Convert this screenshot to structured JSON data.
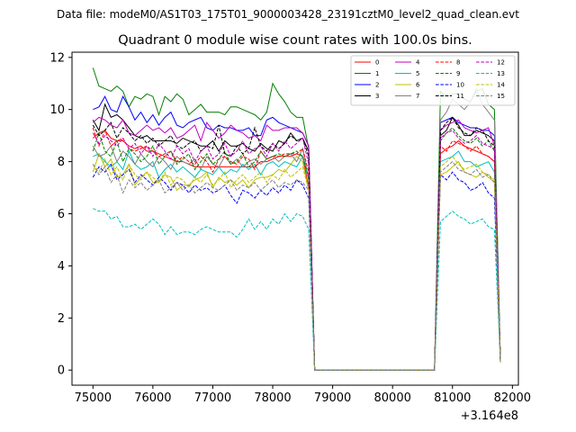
{
  "header": {
    "suptitle": "Data file: modeM0/AS1T03_175T01_9000003428_23191cztM0_level2_quad_clean.evt"
  },
  "chart_data": {
    "type": "line",
    "title": "Quadrant 0 module wise count rates with 100.0s bins.",
    "xlabel": "",
    "ylabel": "",
    "x_offset_label": "+3.164e8",
    "x_offset": 316400000,
    "xlim": [
      74650,
      82100
    ],
    "ylim": [
      -0.58,
      12.2
    ],
    "xticks": [
      75000,
      76000,
      77000,
      78000,
      79000,
      80000,
      81000,
      82000
    ],
    "xtick_labels": [
      "75000",
      "76000",
      "77000",
      "78000",
      "79000",
      "80000",
      "81000",
      "82000"
    ],
    "yticks": [
      0,
      2,
      4,
      6,
      8,
      10,
      12
    ],
    "ytick_labels": [
      "0",
      "2",
      "4",
      "6",
      "8",
      "10",
      "12"
    ],
    "grid": false,
    "legend_position": "top-right",
    "x_segment_1": [
      75000,
      75100,
      75200,
      75300,
      75400,
      75500,
      75600,
      75700,
      75800,
      75900,
      76000,
      76100,
      76200,
      76300,
      76400,
      76500,
      76600,
      76700,
      76800,
      76900,
      77000,
      77100,
      77200,
      77300,
      77400,
      77500,
      77600,
      77700,
      77800,
      77900,
      78000,
      78100,
      78200,
      78300,
      78400,
      78500,
      78600,
      78700
    ],
    "x_segment_2": [
      80700,
      80800,
      80900,
      81000,
      81100,
      81200,
      81300,
      81400,
      81500,
      81600,
      81700,
      81800
    ],
    "series": [
      {
        "name": "0",
        "color": "#ff0000",
        "dash": "solid",
        "s1": [
          8.9,
          9.1,
          9.2,
          8.9,
          8.8,
          8.8,
          8.6,
          8.5,
          8.6,
          8.4,
          8.4,
          8.3,
          8.2,
          8.1,
          8.0,
          8.0,
          7.9,
          7.8,
          7.8,
          7.8,
          7.8,
          7.8,
          7.8,
          7.8,
          7.8,
          7.8,
          7.8,
          7.8,
          8.0,
          8.0,
          8.1,
          8.2,
          8.2,
          8.2,
          8.3,
          8.2,
          7.0,
          0.0
        ],
        "s2": [
          0.0,
          8.3,
          8.5,
          8.6,
          8.8,
          8.6,
          8.5,
          8.4,
          8.3,
          8.2,
          8.0,
          0.3
        ]
      },
      {
        "name": "1",
        "color": "#008000",
        "dash": "solid",
        "s1": [
          11.6,
          10.9,
          10.8,
          10.7,
          10.9,
          10.7,
          10.1,
          10.5,
          10.4,
          10.6,
          10.5,
          9.8,
          10.5,
          10.3,
          10.6,
          10.4,
          9.8,
          10.0,
          10.2,
          9.9,
          9.9,
          9.9,
          9.8,
          10.1,
          10.1,
          10.0,
          9.9,
          9.8,
          9.6,
          9.9,
          11.0,
          10.6,
          10.3,
          9.9,
          9.7,
          9.7,
          8.5,
          0.0
        ],
        "s2": [
          0.0,
          10.7,
          10.5,
          10.6,
          10.6,
          10.4,
          10.3,
          10.7,
          10.8,
          10.2,
          10.0,
          0.3
        ]
      },
      {
        "name": "2",
        "color": "#0000ff",
        "dash": "solid",
        "s1": [
          10.0,
          10.1,
          10.5,
          10.0,
          9.9,
          10.5,
          10.1,
          9.6,
          9.9,
          9.5,
          9.8,
          9.4,
          9.7,
          9.9,
          9.4,
          9.3,
          9.5,
          9.6,
          9.7,
          9.3,
          9.2,
          9.4,
          9.3,
          9.3,
          9.2,
          9.2,
          9.3,
          9.0,
          9.0,
          9.6,
          9.7,
          9.5,
          9.4,
          9.3,
          9.2,
          9.1,
          8.6,
          0.0
        ],
        "s2": [
          0.0,
          9.5,
          9.6,
          9.7,
          9.5,
          9.4,
          9.3,
          9.3,
          9.2,
          9.2,
          9.0,
          0.3
        ]
      },
      {
        "name": "3",
        "color": "#000000",
        "dash": "solid",
        "s1": [
          9.6,
          9.2,
          10.2,
          9.7,
          9.8,
          9.6,
          9.3,
          9.0,
          8.9,
          9.0,
          8.8,
          8.8,
          8.8,
          8.8,
          8.7,
          8.9,
          8.8,
          8.7,
          8.6,
          8.6,
          8.8,
          8.4,
          8.8,
          8.6,
          8.6,
          8.7,
          8.5,
          8.4,
          8.7,
          8.5,
          8.4,
          8.8,
          8.7,
          9.1,
          8.8,
          8.9,
          8.4,
          0.0
        ],
        "s2": [
          0.0,
          9.0,
          9.2,
          9.7,
          9.4,
          9.0,
          9.0,
          9.2,
          9.1,
          9.0,
          8.8,
          0.3
        ]
      },
      {
        "name": "4",
        "color": "#bf00bf",
        "dash": "solid",
        "s1": [
          9.5,
          9.7,
          9.6,
          9.4,
          9.3,
          9.6,
          9.1,
          9.0,
          9.2,
          9.4,
          9.2,
          9.3,
          9.1,
          9.3,
          8.9,
          9.0,
          9.2,
          9.4,
          8.8,
          9.5,
          9.2,
          8.9,
          9.1,
          9.4,
          9.2,
          9.1,
          8.9,
          9.0,
          8.8,
          9.4,
          9.2,
          9.2,
          9.3,
          9.3,
          9.3,
          9.1,
          8.6,
          0.0
        ],
        "s2": [
          0.0,
          9.2,
          9.4,
          9.5,
          9.6,
          9.3,
          9.2,
          9.1,
          9.2,
          9.3,
          8.6,
          0.3
        ]
      },
      {
        "name": "5",
        "color": "#00bfbf",
        "dash": "solid",
        "s1": [
          8.2,
          8.3,
          8.0,
          7.8,
          8.0,
          7.7,
          8.4,
          7.9,
          7.7,
          7.8,
          8.0,
          7.4,
          7.7,
          7.9,
          7.6,
          7.8,
          7.6,
          7.4,
          7.7,
          7.6,
          7.5,
          7.8,
          7.5,
          7.7,
          7.6,
          7.9,
          7.7,
          7.9,
          7.5,
          7.9,
          8.0,
          7.8,
          8.0,
          7.9,
          7.8,
          8.2,
          7.3,
          0.0
        ],
        "s2": [
          0.0,
          8.0,
          8.1,
          8.2,
          8.4,
          8.0,
          8.0,
          7.8,
          7.9,
          8.0,
          7.6,
          0.3
        ]
      },
      {
        "name": "6",
        "color": "#bfbf00",
        "dash": "solid",
        "s1": [
          7.6,
          8.3,
          7.8,
          8.1,
          7.4,
          7.5,
          7.9,
          7.1,
          7.4,
          7.6,
          7.2,
          7.2,
          7.5,
          7.4,
          6.9,
          7.1,
          7.1,
          7.3,
          7.4,
          7.6,
          7.0,
          7.4,
          7.2,
          7.3,
          7.1,
          7.3,
          7.0,
          7.3,
          7.4,
          7.4,
          7.5,
          7.7,
          7.6,
          7.9,
          8.2,
          8.0,
          6.9,
          0.0
        ],
        "s2": [
          0.0,
          7.5,
          7.6,
          7.8,
          8.0,
          7.6,
          7.5,
          7.4,
          7.6,
          7.4,
          7.2,
          0.3
        ]
      },
      {
        "name": "7",
        "color": "#808080",
        "dash": "solid",
        "s1": [
          8.6,
          8.2,
          8.3,
          8.6,
          8.0,
          8.4,
          8.2,
          7.9,
          8.3,
          8.0,
          7.8,
          8.2,
          8.0,
          7.7,
          8.2,
          8.0,
          7.9,
          8.1,
          7.7,
          8.2,
          7.9,
          7.8,
          8.2,
          7.9,
          8.1,
          7.8,
          8.0,
          8.1,
          7.9,
          8.1,
          8.2,
          8.0,
          8.2,
          8.3,
          8.0,
          8.5,
          7.3,
          0.0
        ],
        "s2": [
          0.0,
          9.6,
          9.9,
          10.4,
          10.2,
          10.0,
          10.3,
          10.8,
          10.2,
          9.9,
          9.6,
          0.3
        ]
      },
      {
        "name": "8",
        "color": "#ff0000",
        "dash": "dashed",
        "s1": [
          9.3,
          8.6,
          9.2,
          8.6,
          8.8,
          8.9,
          8.5,
          8.4,
          8.5,
          8.6,
          8.4,
          8.2,
          8.3,
          8.4,
          8.0,
          8.2,
          8.0,
          7.9,
          8.2,
          8.0,
          7.6,
          8.1,
          8.2,
          8.0,
          7.9,
          8.2,
          8.1,
          7.7,
          8.4,
          8.1,
          8.2,
          8.2,
          8.3,
          8.3,
          8.3,
          8.5,
          7.6,
          0.0
        ],
        "s2": [
          0.0,
          8.6,
          8.4,
          8.8,
          8.7,
          8.6,
          8.4,
          8.6,
          8.3,
          8.2,
          8.0,
          0.3
        ]
      },
      {
        "name": "9",
        "color": "#008000",
        "dash": "dashed",
        "s1": [
          8.4,
          9.1,
          8.4,
          8.2,
          8.8,
          8.0,
          8.5,
          8.3,
          8.0,
          8.2,
          8.6,
          7.9,
          8.2,
          8.4,
          7.9,
          8.1,
          8.3,
          7.7,
          8.0,
          8.3,
          7.9,
          8.1,
          8.4,
          7.9,
          8.0,
          8.3,
          7.8,
          8.0,
          8.4,
          8.1,
          8.2,
          8.3,
          8.2,
          8.3,
          8.4,
          8.2,
          7.4,
          0.0
        ],
        "s2": [
          0.0,
          8.8,
          9.1,
          9.3,
          9.0,
          8.8,
          8.7,
          8.9,
          8.6,
          8.8,
          8.4,
          0.3
        ]
      },
      {
        "name": "10",
        "color": "#0000ff",
        "dash": "dashed",
        "s1": [
          7.4,
          7.8,
          7.6,
          7.9,
          7.3,
          7.5,
          7.7,
          7.2,
          7.5,
          7.3,
          7.1,
          7.4,
          7.2,
          6.9,
          7.2,
          7.1,
          6.8,
          7.1,
          6.9,
          7.0,
          6.8,
          6.9,
          7.1,
          6.7,
          6.4,
          6.9,
          6.8,
          6.6,
          6.9,
          6.7,
          7.0,
          6.8,
          7.1,
          6.9,
          7.3,
          7.1,
          6.6,
          0.0
        ],
        "s2": [
          0.0,
          7.5,
          7.3,
          7.6,
          7.3,
          7.2,
          6.9,
          7.0,
          7.2,
          6.8,
          6.6,
          0.3
        ]
      },
      {
        "name": "11",
        "color": "#000000",
        "dash": "dashed",
        "s1": [
          9.4,
          9.0,
          9.2,
          9.5,
          8.9,
          9.3,
          9.1,
          8.8,
          9.0,
          8.7,
          8.9,
          8.6,
          8.8,
          9.0,
          8.6,
          8.5,
          8.7,
          8.8,
          8.4,
          8.6,
          8.5,
          9.4,
          8.3,
          8.2,
          8.6,
          8.3,
          8.5,
          9.3,
          8.6,
          8.4,
          8.7,
          8.5,
          8.7,
          9.0,
          8.8,
          8.9,
          8.2,
          0.0
        ],
        "s2": [
          0.0,
          9.2,
          9.5,
          9.7,
          9.3,
          9.1,
          9.0,
          9.3,
          9.2,
          8.8,
          8.6,
          0.3
        ]
      },
      {
        "name": "12",
        "color": "#bf00bf",
        "dash": "dashed",
        "s1": [
          9.1,
          8.7,
          9.0,
          8.8,
          8.6,
          8.9,
          8.5,
          8.7,
          8.3,
          8.6,
          8.2,
          8.7,
          8.4,
          8.1,
          8.6,
          8.3,
          8.5,
          8.0,
          8.4,
          8.6,
          8.1,
          8.3,
          8.7,
          8.2,
          8.4,
          8.8,
          8.3,
          8.5,
          8.6,
          8.2,
          8.7,
          8.4,
          8.8,
          8.5,
          8.7,
          8.9,
          7.9,
          0.0
        ],
        "s2": [
          0.0,
          8.9,
          9.1,
          9.2,
          8.9,
          8.7,
          8.8,
          9.0,
          8.7,
          8.6,
          8.5,
          0.3
        ]
      },
      {
        "name": "13",
        "color": "#00bfbf",
        "dash": "dashed",
        "s1": [
          6.2,
          6.1,
          6.1,
          5.8,
          5.9,
          5.5,
          5.5,
          5.6,
          5.4,
          5.6,
          5.8,
          5.6,
          5.2,
          5.5,
          5.2,
          5.3,
          5.3,
          5.2,
          5.4,
          5.5,
          5.4,
          5.3,
          5.3,
          5.3,
          5.1,
          5.4,
          5.8,
          5.4,
          5.7,
          5.4,
          5.8,
          5.6,
          6.0,
          5.7,
          6.0,
          5.9,
          5.4,
          0.0
        ],
        "s2": [
          0.0,
          5.7,
          5.9,
          6.1,
          5.9,
          5.8,
          5.6,
          5.7,
          5.8,
          5.5,
          5.4,
          0.3
        ]
      },
      {
        "name": "14",
        "color": "#bfbf00",
        "dash": "dashed",
        "s1": [
          7.9,
          7.6,
          8.1,
          7.5,
          7.8,
          7.3,
          7.9,
          7.5,
          7.3,
          7.6,
          7.4,
          7.2,
          7.6,
          7.1,
          7.4,
          7.3,
          7.0,
          7.4,
          7.2,
          7.5,
          7.1,
          7.3,
          7.6,
          7.0,
          7.3,
          7.5,
          7.2,
          7.4,
          7.6,
          7.2,
          7.5,
          7.3,
          7.7,
          7.4,
          7.6,
          7.8,
          6.9,
          0.0
        ],
        "s2": [
          0.0,
          7.8,
          8.0,
          8.2,
          7.9,
          7.7,
          7.8,
          7.9,
          7.6,
          7.5,
          7.3,
          0.3
        ]
      },
      {
        "name": "15",
        "color": "#808080",
        "dash": "dashed",
        "s1": [
          7.9,
          7.5,
          7.8,
          7.2,
          7.5,
          6.8,
          7.3,
          7.0,
          7.2,
          6.9,
          7.1,
          7.3,
          6.8,
          7.0,
          7.2,
          6.9,
          7.1,
          6.8,
          7.0,
          7.2,
          7.0,
          6.9,
          7.1,
          7.3,
          6.9,
          7.1,
          7.0,
          7.2,
          6.9,
          7.1,
          7.3,
          7.0,
          7.2,
          7.1,
          7.3,
          7.2,
          6.9,
          0.0
        ],
        "s2": [
          0.0,
          7.6,
          7.8,
          8.0,
          7.7,
          7.6,
          7.5,
          7.7,
          7.4,
          7.5,
          7.2,
          0.3
        ]
      }
    ]
  }
}
